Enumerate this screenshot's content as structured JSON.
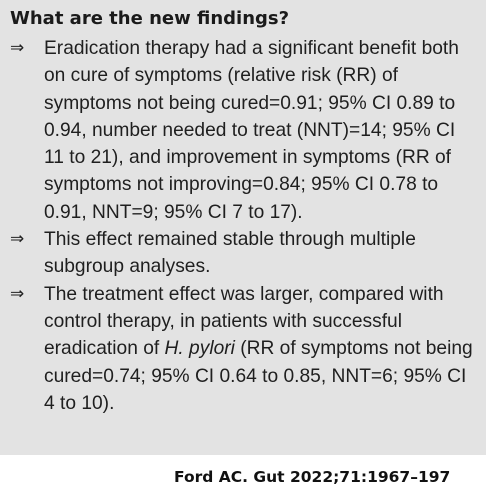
{
  "box": {
    "heading": "What are the new findings?",
    "arrow_glyph": "⇒",
    "bullets": [
      {
        "text": "Eradication therapy had a significant benefit both on cure of symptoms (relative risk (RR) of symptoms not being cured=0.91; 95% CI 0.89 to 0.94, number needed to treat (NNT)=14; 95% CI 11 to 21), and improvement in symptoms (RR of symptoms not improving=0.84; 95% CI 0.78 to 0.91, NNT=9; 95% CI 7 to 17)."
      },
      {
        "text": "This effect remained stable through multiple subgroup analyses."
      },
      {
        "text_before": "The treatment effect was larger, compared with control therapy, in patients with successful eradication of ",
        "italic": "H. pylori",
        "text_after": " (RR of symptoms not being cured=0.74; 95% CI 0.64 to 0.85, NNT=6; 95% CI 4 to 10)."
      }
    ]
  },
  "citation": "Ford AC. Gut 2022;71:1967–197",
  "colors": {
    "panel_background": "#e3e3e3",
    "text": "#1a1a1a",
    "page_background": "#ffffff"
  }
}
